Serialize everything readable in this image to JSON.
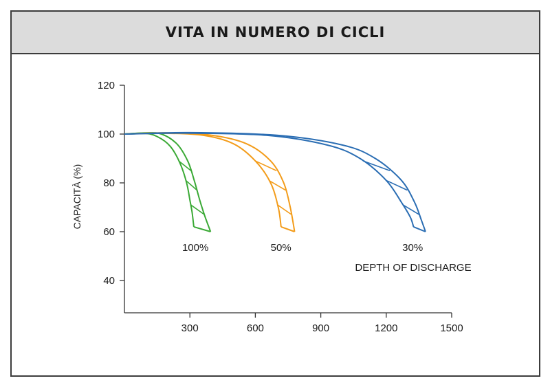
{
  "header": {
    "title": "VITA IN NUMERO DI CICLI"
  },
  "chart_data": {
    "type": "line",
    "title": "VITA IN NUMERO DI CICLI",
    "xlabel": "",
    "ylabel": "CAPACITÀ (%)",
    "xlim": [
      0,
      1500
    ],
    "ylim": [
      28,
      120
    ],
    "x_ticks": [
      300,
      600,
      900,
      1200,
      1500
    ],
    "y_ticks": [
      120,
      100,
      80,
      60,
      40
    ],
    "grid": false,
    "annotation": "DEPTH OF DISCHARGE",
    "colors": {
      "100%": "#3aa935",
      "50%": "#f39c1a",
      "30%": "#2a6db3"
    },
    "series": [
      {
        "name": "100%",
        "upper": {
          "x": [
            0,
            100,
            170,
            240,
            290,
            320,
            345,
            370,
            395
          ],
          "y": [
            100,
            100.5,
            100,
            96,
            89,
            81,
            73,
            66,
            60
          ]
        },
        "lower": {
          "x": [
            0,
            90,
            150,
            210,
            255,
            285,
            300,
            310,
            318
          ],
          "y": [
            100,
            100.3,
            99,
            95,
            88,
            80,
            73,
            68,
            62
          ]
        }
      },
      {
        "name": "50%",
        "upper": {
          "x": [
            0,
            200,
            400,
            560,
            670,
            730,
            760,
            780
          ],
          "y": [
            100,
            100.5,
            99.5,
            96,
            89,
            80,
            70,
            60
          ]
        },
        "lower": {
          "x": [
            0,
            180,
            360,
            500,
            600,
            670,
            705,
            718
          ],
          "y": [
            100,
            100.3,
            99.5,
            96,
            89,
            80,
            70,
            62
          ]
        }
      },
      {
        "name": "30%",
        "upper": {
          "x": [
            0,
            300,
            700,
            1000,
            1150,
            1270,
            1330,
            1360,
            1380
          ],
          "y": [
            100,
            100.6,
            99.5,
            95.5,
            90,
            81,
            72,
            65,
            60
          ]
        },
        "lower": {
          "x": [
            0,
            280,
            650,
            930,
            1080,
            1200,
            1270,
            1310,
            1325
          ],
          "y": [
            100,
            100.4,
            99.5,
            95.5,
            90,
            81,
            72,
            66,
            62
          ]
        }
      }
    ]
  }
}
